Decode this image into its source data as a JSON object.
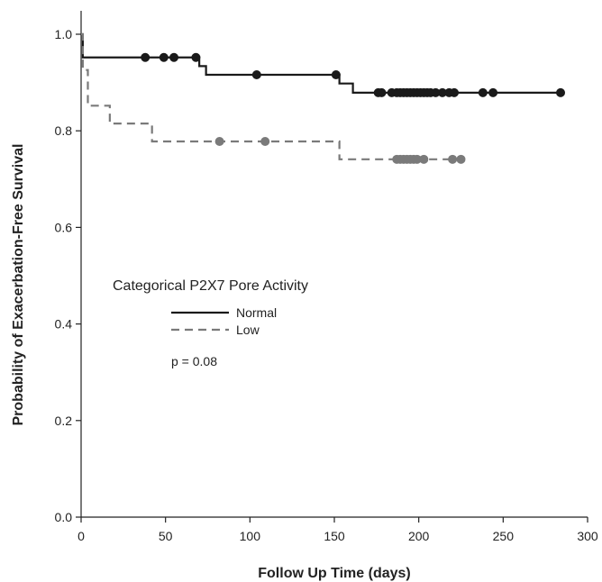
{
  "chart_data": {
    "type": "line",
    "subtype": "kaplan-meier-step",
    "xlabel": "Follow Up Time (days)",
    "ylabel": "Probability of Exacerbation-Free Survival",
    "xlim": [
      0,
      300
    ],
    "ylim": [
      0,
      1.0
    ],
    "x_ticks": [
      0,
      50,
      100,
      150,
      200,
      250,
      300
    ],
    "x_tick_labels": [
      "0",
      "50",
      "100",
      "150",
      "200",
      "250",
      "300"
    ],
    "y_ticks": [
      0,
      0.2,
      0.4,
      0.6,
      0.8,
      1.0
    ],
    "y_tick_labels": [
      "0.0",
      "0.2",
      "0.4",
      "0.6",
      "0.8",
      "1.0"
    ],
    "grid": false,
    "legend": {
      "title": "Categorical P2X7 Pore Activity",
      "position": "center-left",
      "entries": [
        "Normal",
        "Low"
      ]
    },
    "annotation": "p = 0.08",
    "series": [
      {
        "name": "Normal",
        "color": "#1a1a1a",
        "line_style": "solid",
        "steps": [
          [
            0,
            1.0
          ],
          [
            1,
            0.952
          ],
          [
            70,
            0.934
          ],
          [
            74,
            0.916
          ],
          [
            153,
            0.898
          ],
          [
            161,
            0.879
          ],
          [
            284,
            0.879
          ]
        ],
        "censored": [
          [
            38,
            0.952
          ],
          [
            49,
            0.952
          ],
          [
            55,
            0.952
          ],
          [
            68,
            0.952
          ],
          [
            104,
            0.916
          ],
          [
            151,
            0.916
          ],
          [
            176,
            0.879
          ],
          [
            178,
            0.879
          ],
          [
            184,
            0.879
          ],
          [
            187,
            0.879
          ],
          [
            189,
            0.879
          ],
          [
            191,
            0.879
          ],
          [
            193,
            0.879
          ],
          [
            195,
            0.879
          ],
          [
            197,
            0.879
          ],
          [
            199,
            0.879
          ],
          [
            201,
            0.879
          ],
          [
            203,
            0.879
          ],
          [
            205,
            0.879
          ],
          [
            207,
            0.879
          ],
          [
            210,
            0.879
          ],
          [
            214,
            0.879
          ],
          [
            218,
            0.879
          ],
          [
            221,
            0.879
          ],
          [
            238,
            0.879
          ],
          [
            244,
            0.879
          ],
          [
            284,
            0.879
          ]
        ]
      },
      {
        "name": "Low",
        "color": "#7a7a7a",
        "line_style": "dashed",
        "steps": [
          [
            0,
            1.0
          ],
          [
            1,
            0.926
          ],
          [
            4,
            0.852
          ],
          [
            17,
            0.815
          ],
          [
            42,
            0.778
          ],
          [
            153,
            0.741
          ],
          [
            225,
            0.741
          ]
        ],
        "censored": [
          [
            82,
            0.778
          ],
          [
            109,
            0.778
          ],
          [
            187,
            0.741
          ],
          [
            189,
            0.741
          ],
          [
            191,
            0.741
          ],
          [
            193,
            0.741
          ],
          [
            195,
            0.741
          ],
          [
            197,
            0.741
          ],
          [
            199,
            0.741
          ],
          [
            203,
            0.741
          ],
          [
            220,
            0.741
          ],
          [
            225,
            0.741
          ]
        ]
      }
    ]
  }
}
